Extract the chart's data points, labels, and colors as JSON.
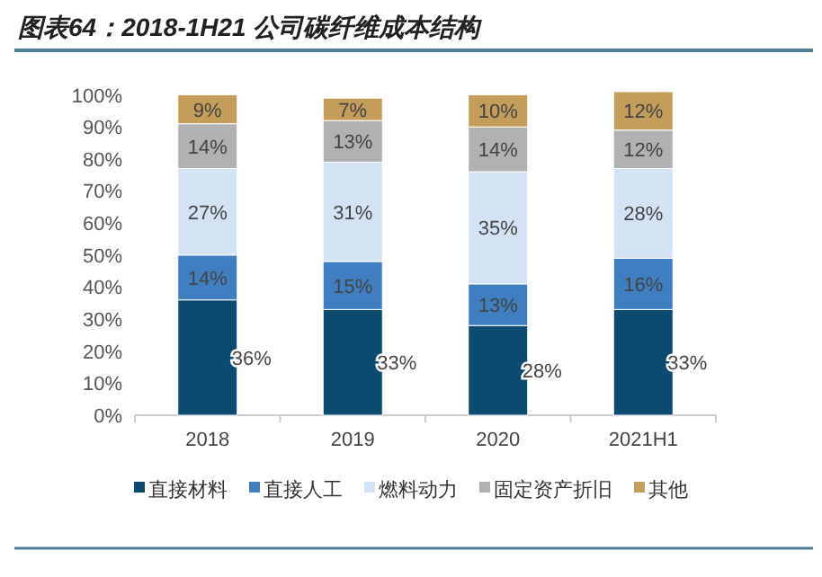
{
  "chart_data": {
    "type": "bar",
    "stacked": true,
    "title": "图表64：2018-1H21 公司碳纤维成本结构",
    "categories": [
      "2018",
      "2019",
      "2020",
      "2021H1"
    ],
    "series": [
      {
        "name": "直接材料",
        "color": "#0d4a70",
        "values": [
          36,
          33,
          28,
          33
        ],
        "value_labels": [
          "36%",
          "33%",
          "28%",
          "33%"
        ]
      },
      {
        "name": "直接人工",
        "color": "#3f7fc1",
        "values": [
          14,
          15,
          13,
          16
        ],
        "value_labels": [
          "14%",
          "15%",
          "13%",
          "16%"
        ]
      },
      {
        "name": "燃料动力",
        "color": "#d3e3f3",
        "values": [
          27,
          31,
          35,
          28
        ],
        "value_labels": [
          "27%",
          "31%",
          "35%",
          "28%"
        ]
      },
      {
        "name": "固定资产折旧",
        "color": "#b1b1b1",
        "values": [
          14,
          13,
          14,
          12
        ],
        "value_labels": [
          "14%",
          "13%",
          "14%",
          "12%"
        ]
      },
      {
        "name": "其他",
        "color": "#c49d5a",
        "values": [
          9,
          7,
          10,
          12
        ],
        "value_labels": [
          "9%",
          "7%",
          "10%",
          "12%"
        ]
      }
    ],
    "ylim": [
      0,
      101
    ],
    "yticks": [
      {
        "value": 0,
        "label": "0%"
      },
      {
        "value": 10,
        "label": "10%"
      },
      {
        "value": 20,
        "label": "20%"
      },
      {
        "value": 30,
        "label": "30%"
      },
      {
        "value": 40,
        "label": "40%"
      },
      {
        "value": 50,
        "label": "50%"
      },
      {
        "value": 60,
        "label": "60%"
      },
      {
        "value": 70,
        "label": "70%"
      },
      {
        "value": 80,
        "label": "80%"
      },
      {
        "value": 90,
        "label": "90%"
      },
      {
        "value": 100,
        "label": "100%"
      }
    ],
    "grid": false,
    "legend": "bottom"
  }
}
